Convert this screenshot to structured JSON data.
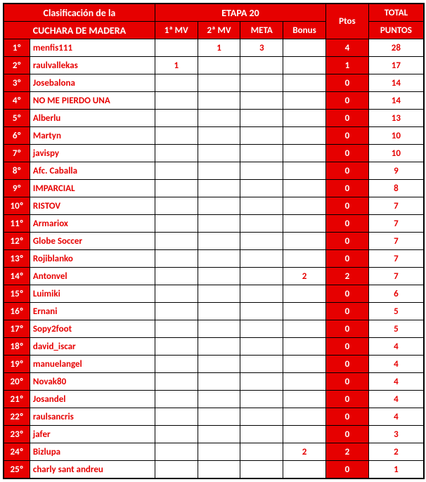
{
  "header": {
    "title_line1": "Clasificación de la",
    "title_line2": "CUCHARA DE MADERA",
    "etapa": "ETAPA 20",
    "total_label": "TOTAL",
    "puntos_label": "PUNTOS",
    "col_1mv": "1ª MV",
    "col_2mv": "2ª MV",
    "col_meta": "META",
    "col_bonus": "Bonus",
    "col_ptos": "Ptos"
  },
  "colors": {
    "red": "#e60000",
    "white": "#ffffff",
    "text_red": "#e60000",
    "text_white": "#ffffff"
  },
  "rows": [
    {
      "rank": "1º",
      "name": "menfis111",
      "mv1": "",
      "mv2": "1",
      "meta": "3",
      "bonus": "",
      "ptos": "4",
      "total": "28"
    },
    {
      "rank": "2º",
      "name": "raulvallekas",
      "mv1": "1",
      "mv2": "",
      "meta": "",
      "bonus": "",
      "ptos": "1",
      "total": "17"
    },
    {
      "rank": "3º",
      "name": "Josebalona",
      "mv1": "",
      "mv2": "",
      "meta": "",
      "bonus": "",
      "ptos": "0",
      "total": "14"
    },
    {
      "rank": "4º",
      "name": "NO ME PIERDO UNA",
      "mv1": "",
      "mv2": "",
      "meta": "",
      "bonus": "",
      "ptos": "0",
      "total": "14"
    },
    {
      "rank": "5º",
      "name": "Alberlu",
      "mv1": "",
      "mv2": "",
      "meta": "",
      "bonus": "",
      "ptos": "0",
      "total": "13"
    },
    {
      "rank": "6º",
      "name": "Martyn",
      "mv1": "",
      "mv2": "",
      "meta": "",
      "bonus": "",
      "ptos": "0",
      "total": "10"
    },
    {
      "rank": "7º",
      "name": "javispy",
      "mv1": "",
      "mv2": "",
      "meta": "",
      "bonus": "",
      "ptos": "0",
      "total": "10"
    },
    {
      "rank": "8º",
      "name": "Afc. Caballa",
      "mv1": "",
      "mv2": "",
      "meta": "",
      "bonus": "",
      "ptos": "0",
      "total": "9"
    },
    {
      "rank": "9º",
      "name": "IMPARCIAL",
      "mv1": "",
      "mv2": "",
      "meta": "",
      "bonus": "",
      "ptos": "0",
      "total": "8"
    },
    {
      "rank": "10º",
      "name": "RISTOV",
      "mv1": "",
      "mv2": "",
      "meta": "",
      "bonus": "",
      "ptos": "0",
      "total": "7"
    },
    {
      "rank": "11º",
      "name": "Armariox",
      "mv1": "",
      "mv2": "",
      "meta": "",
      "bonus": "",
      "ptos": "0",
      "total": "7"
    },
    {
      "rank": "12º",
      "name": "Globe Soccer",
      "mv1": "",
      "mv2": "",
      "meta": "",
      "bonus": "",
      "ptos": "0",
      "total": "7"
    },
    {
      "rank": "13º",
      "name": "Rojiblanko",
      "mv1": "",
      "mv2": "",
      "meta": "",
      "bonus": "",
      "ptos": "0",
      "total": "7"
    },
    {
      "rank": "14º",
      "name": "Antonvel",
      "mv1": "",
      "mv2": "",
      "meta": "",
      "bonus": "2",
      "ptos": "2",
      "total": "7"
    },
    {
      "rank": "15º",
      "name": "Luimiki",
      "mv1": "",
      "mv2": "",
      "meta": "",
      "bonus": "",
      "ptos": "0",
      "total": "6"
    },
    {
      "rank": "16º",
      "name": "Ernani",
      "mv1": "",
      "mv2": "",
      "meta": "",
      "bonus": "",
      "ptos": "0",
      "total": "5"
    },
    {
      "rank": "17º",
      "name": "Sopy2foot",
      "mv1": "",
      "mv2": "",
      "meta": "",
      "bonus": "",
      "ptos": "0",
      "total": "5"
    },
    {
      "rank": "18º",
      "name": "david_iscar",
      "mv1": "",
      "mv2": "",
      "meta": "",
      "bonus": "",
      "ptos": "0",
      "total": "4"
    },
    {
      "rank": "19º",
      "name": "manuelangel",
      "mv1": "",
      "mv2": "",
      "meta": "",
      "bonus": "",
      "ptos": "0",
      "total": "4"
    },
    {
      "rank": "20º",
      "name": "Novak80",
      "mv1": "",
      "mv2": "",
      "meta": "",
      "bonus": "",
      "ptos": "0",
      "total": "4"
    },
    {
      "rank": "21º",
      "name": "Josandel",
      "mv1": "",
      "mv2": "",
      "meta": "",
      "bonus": "",
      "ptos": "0",
      "total": "4"
    },
    {
      "rank": "22º",
      "name": "raulsancris",
      "mv1": "",
      "mv2": "",
      "meta": "",
      "bonus": "",
      "ptos": "0",
      "total": "4"
    },
    {
      "rank": "23º",
      "name": "jafer",
      "mv1": "",
      "mv2": "",
      "meta": "",
      "bonus": "",
      "ptos": "0",
      "total": "3"
    },
    {
      "rank": "24º",
      "name": "Bizlupa",
      "mv1": "",
      "mv2": "",
      "meta": "",
      "bonus": "2",
      "ptos": "2",
      "total": "2"
    },
    {
      "rank": "25º",
      "name": "charly sant andreu",
      "mv1": "",
      "mv2": "",
      "meta": "",
      "bonus": "",
      "ptos": "0",
      "total": "1"
    }
  ]
}
